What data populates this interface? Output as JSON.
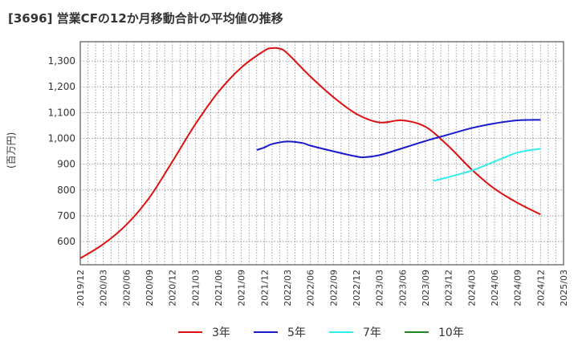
{
  "chart_data": {
    "type": "line",
    "title": "[3696]  営業CFの12か月移動合計の平均値の推移",
    "xlabel": "",
    "ylabel": "(百万円)",
    "ylim": [
      510,
      1375
    ],
    "yticks": [
      600,
      700,
      800,
      900,
      1000,
      1100,
      1200,
      1300
    ],
    "ytick_labels": [
      "600",
      "700",
      "800",
      "900",
      "1,000",
      "1,100",
      "1,200",
      "1,300"
    ],
    "xticks": [
      "2019/12",
      "2020/03",
      "2020/06",
      "2020/09",
      "2020/12",
      "2021/03",
      "2021/06",
      "2021/09",
      "2021/12",
      "2022/03",
      "2022/06",
      "2022/09",
      "2022/12",
      "2023/03",
      "2023/06",
      "2023/09",
      "2023/12",
      "2024/03",
      "2024/06",
      "2024/09",
      "2024/12",
      "2025/03"
    ],
    "grid": true,
    "legend_position": "bottom",
    "series": [
      {
        "name": "3年",
        "color": "#dd1111",
        "points": [
          [
            "2019/12",
            535
          ],
          [
            "2020/03",
            590
          ],
          [
            "2020/06",
            665
          ],
          [
            "2020/09",
            770
          ],
          [
            "2020/12",
            910
          ],
          [
            "2021/03",
            1055
          ],
          [
            "2021/06",
            1180
          ],
          [
            "2021/09",
            1275
          ],
          [
            "2021/12",
            1340
          ],
          [
            "2022/01",
            1350
          ],
          [
            "2022/02",
            1348
          ],
          [
            "2022/03",
            1330
          ],
          [
            "2022/06",
            1240
          ],
          [
            "2022/09",
            1160
          ],
          [
            "2022/12",
            1095
          ],
          [
            "2023/03",
            1062
          ],
          [
            "2023/06",
            1070
          ],
          [
            "2023/09",
            1045
          ],
          [
            "2023/12",
            970
          ],
          [
            "2024/03",
            880
          ],
          [
            "2024/06",
            805
          ],
          [
            "2024/09",
            750
          ],
          [
            "2024/12",
            705
          ]
        ]
      },
      {
        "name": "5年",
        "color": "#1a1acc",
        "points": [
          [
            "2021/11",
            955
          ],
          [
            "2021/12",
            965
          ],
          [
            "2022/01",
            978
          ],
          [
            "2022/03",
            988
          ],
          [
            "2022/05",
            982
          ],
          [
            "2022/06",
            972
          ],
          [
            "2022/09",
            950
          ],
          [
            "2022/12",
            930
          ],
          [
            "2023/01",
            927
          ],
          [
            "2023/03",
            935
          ],
          [
            "2023/06",
            962
          ],
          [
            "2023/09",
            990
          ],
          [
            "2023/12",
            1015
          ],
          [
            "2024/03",
            1040
          ],
          [
            "2024/06",
            1058
          ],
          [
            "2024/09",
            1070
          ],
          [
            "2024/12",
            1072
          ]
        ]
      },
      {
        "name": "7年",
        "color": "#33eeee",
        "points": [
          [
            "2023/10",
            835
          ],
          [
            "2023/12",
            850
          ],
          [
            "2024/03",
            875
          ],
          [
            "2024/06",
            910
          ],
          [
            "2024/09",
            945
          ],
          [
            "2024/12",
            960
          ]
        ]
      },
      {
        "name": "10年",
        "color": "#228822",
        "points": []
      }
    ]
  }
}
